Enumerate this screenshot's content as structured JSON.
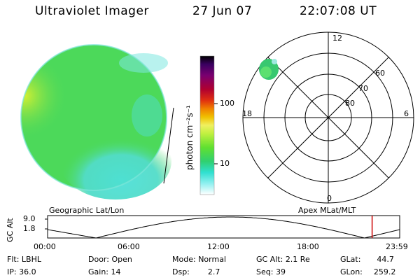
{
  "header": {
    "instrument": "Ultraviolet Imager",
    "date": "27 Jun 07",
    "time": "22:07:08 UT"
  },
  "colorbar": {
    "unit_label": "photon cm⁻²s⁻¹",
    "ticks": [
      "100",
      "10"
    ],
    "stops": [
      "#000000",
      "#3a0060",
      "#7a0070",
      "#a80030",
      "#d02020",
      "#f06010",
      "#f0a000",
      "#f0e040",
      "#c0f040",
      "#60e030",
      "#30d070",
      "#30e0d0",
      "#80f0f0",
      "#d0f4f4",
      "#ffffff"
    ]
  },
  "polar": {
    "mlt_labels": {
      "top": "12",
      "left": "18",
      "right": "6",
      "bottom": "0"
    },
    "lat_labels": [
      "60",
      "70",
      "80"
    ]
  },
  "timeline": {
    "left_title": "Geographic Lat/Lon",
    "right_title": "Apex MLat/MLT",
    "axis_label": "GC Alt",
    "y_ticks": [
      "9.0",
      "1.8"
    ],
    "x_ticks": [
      "00:00",
      "06:00",
      "12:00",
      "18:00",
      "23:59"
    ],
    "current_time_hours": 22.12,
    "colors": {
      "curve": "#000000",
      "marker": "#cc0000"
    }
  },
  "info": {
    "row1": [
      {
        "label": "Flt:",
        "value": "LBHL"
      },
      {
        "label": "Door:",
        "value": "Open"
      },
      {
        "label": "Mode:",
        "value": "Normal"
      },
      {
        "label": "GC Alt:",
        "value": "2.1 Re"
      },
      {
        "label": "GLat:",
        "value": "44.7"
      }
    ],
    "row2": [
      {
        "label": "IP:",
        "value": "36.0"
      },
      {
        "label": "Gain:",
        "value": "14"
      },
      {
        "label": "Dsp:",
        "value": "2.7"
      },
      {
        "label": "Seq:",
        "value": "39"
      },
      {
        "label": "GLon:",
        "value": "259.2"
      }
    ]
  },
  "image_colors": {
    "main": "#4cd95a",
    "cyan": "#4ee0d8",
    "yellow": "#c8ee3a",
    "spot": "#38c870"
  }
}
